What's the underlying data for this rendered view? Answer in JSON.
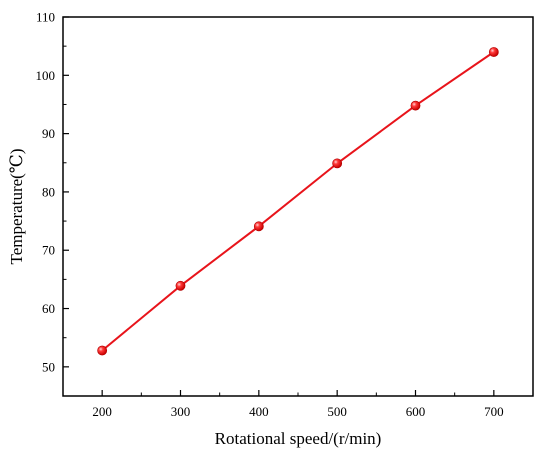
{
  "chart_data": {
    "type": "line",
    "title": "",
    "xlabel": "Rotational speed/(r/min)",
    "ylabel": "Temperature(℃)",
    "xlim": [
      150,
      750
    ],
    "ylim": [
      45,
      110
    ],
    "x_ticks": [
      200,
      300,
      400,
      500,
      600,
      700
    ],
    "y_ticks": [
      50,
      60,
      70,
      80,
      90,
      100,
      110
    ],
    "grid": false,
    "legend": "none",
    "series": [
      {
        "x": [
          200,
          300,
          400,
          500,
          600,
          700
        ],
        "y": [
          52.8,
          63.9,
          74.1,
          84.9,
          94.8,
          104.0
        ],
        "color": "#e8141b",
        "marker": "circle"
      }
    ]
  }
}
